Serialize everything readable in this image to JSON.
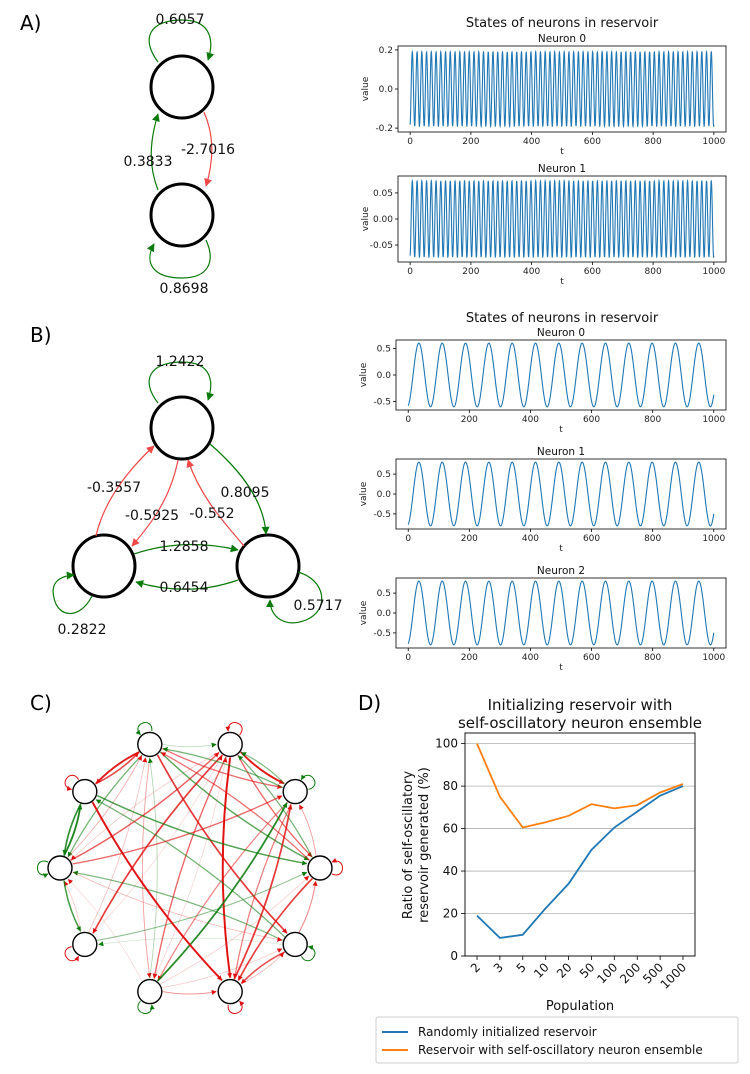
{
  "panels": {
    "a": "A)",
    "b": "B)",
    "c": "C)",
    "d": "D)"
  },
  "colors": {
    "positive": "#0a7a0a",
    "negative": "#f04848",
    "trace": "#1f77b4",
    "orange": "#ff7f0e"
  },
  "panel_a": {
    "self_weights": [
      "0.6057",
      "0.8698"
    ],
    "cross_weights": [
      "0.3833",
      "-2.7016"
    ]
  },
  "panel_b": {
    "weights": {
      "n0_self": "1.2422",
      "n2_to_n0": "-0.3557",
      "n0_to_n2": "-0.5925",
      "n1_to_n0": "-0.552",
      "n0_to_n1": "0.8095",
      "n2_to_n1": "1.2858",
      "n1_to_n2": "0.6454",
      "n1_self": "0.5717",
      "n2_self": "0.2822"
    }
  },
  "chart_data": [
    {
      "type": "line",
      "title": "States of neurons in reservoir",
      "subplots": [
        {
          "title": "Neuron 0",
          "xlabel": "t",
          "ylabel": "value",
          "xlim": [
            0,
            1000
          ],
          "ylim": [
            -0.2,
            0.2
          ],
          "xticks": [
            0,
            200,
            400,
            600,
            800,
            1000
          ],
          "yticks": [
            "0.2",
            "0.0",
            "-0.2"
          ],
          "amplitude": 0.19,
          "cycles": 64
        },
        {
          "title": "Neuron 1",
          "xlabel": "t",
          "ylabel": "value",
          "xlim": [
            0,
            1000
          ],
          "ylim": [
            -0.075,
            0.075
          ],
          "xticks": [
            0,
            200,
            400,
            600,
            800,
            1000
          ],
          "yticks": [
            "0.05",
            "0.00",
            "-0.05"
          ],
          "amplitude": 0.073,
          "cycles": 64
        }
      ]
    },
    {
      "type": "line",
      "title": "States of neurons in reservoir",
      "subplots": [
        {
          "title": "Neuron 0",
          "xlabel": "t",
          "ylabel": "value",
          "xlim": [
            0,
            1000
          ],
          "ylim": [
            -0.6,
            0.6
          ],
          "xticks": [
            0,
            200,
            400,
            600,
            800,
            1000
          ],
          "yticks": [
            "0.5",
            "0.0",
            "-0.5"
          ],
          "amplitude": 0.6,
          "cycles": 13.1
        },
        {
          "title": "Neuron 1",
          "xlabel": "t",
          "ylabel": "value",
          "xlim": [
            0,
            1000
          ],
          "ylim": [
            -0.8,
            0.8
          ],
          "xticks": [
            0,
            200,
            400,
            600,
            800,
            1000
          ],
          "yticks": [
            "0.5",
            "0.0",
            "-0.5"
          ],
          "amplitude": 0.8,
          "cycles": 13.1
        },
        {
          "title": "Neuron 2",
          "xlabel": "t",
          "ylabel": "value",
          "xlim": [
            0,
            1000
          ],
          "ylim": [
            -0.8,
            0.8
          ],
          "xticks": [
            0,
            200,
            400,
            600,
            800,
            1000
          ],
          "yticks": [
            "0.5",
            "0.0",
            "-0.5"
          ],
          "amplitude": 0.8,
          "cycles": 13.1
        }
      ]
    },
    {
      "type": "line",
      "title": "Initializing reservoir with self-oscillatory neuron ensemble",
      "title_lines": [
        "Initializing reservoir with",
        "self-oscillatory neuron ensemble"
      ],
      "xlabel": "Population",
      "ylabel_lines": [
        "Ratio of self-oscillatory",
        "reservoir generated (%)"
      ],
      "categories": [
        "2",
        "3",
        "5",
        "10",
        "20",
        "50",
        "100",
        "200",
        "500",
        "1000"
      ],
      "ylim": [
        0,
        105
      ],
      "yticks": [
        0,
        20,
        40,
        60,
        80,
        100
      ],
      "grid": "horizontal",
      "legend": "bottom",
      "series": [
        {
          "name": "Randomly initialized reservoir",
          "values": [
            19,
            8.5,
            10,
            22.5,
            34,
            50,
            60.5,
            68,
            75.5,
            80
          ]
        },
        {
          "name": "Reservoir with self-oscillatory neuron ensemble",
          "values": [
            100,
            75,
            60.5,
            63,
            66,
            71.5,
            69.5,
            71,
            77,
            81
          ]
        }
      ]
    }
  ]
}
